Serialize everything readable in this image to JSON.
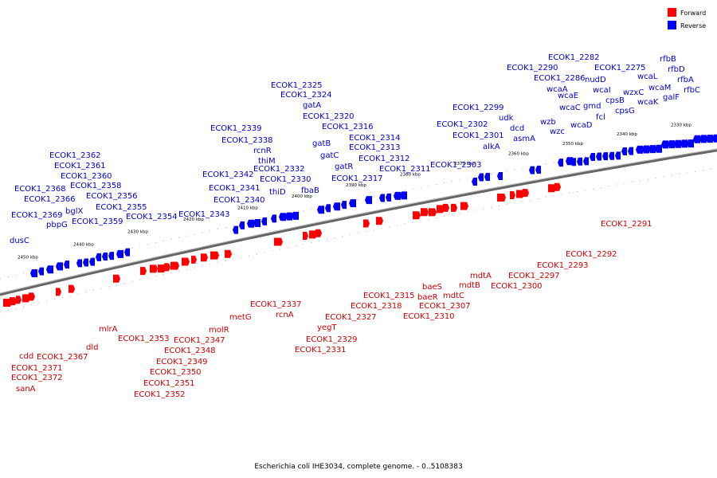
{
  "caption": "Escherichia coli IHE3034, complete genome. - 0..5108383",
  "legend": [
    {
      "label": "Forward",
      "color": "#ff0000"
    },
    {
      "label": "Reverse",
      "color": "#0000ff"
    }
  ],
  "colors": {
    "forward": "#ff0000",
    "reverse": "#0000ff",
    "label_forward": "#cc0000",
    "label_reverse": "#0000cc",
    "backbone": "#888888"
  },
  "ticks": [
    "2450 kbp",
    "2440 kbp",
    "2430 kbp",
    "2420 kbp",
    "2410 kbp",
    "2400 kbp",
    "2390 kbp",
    "2380 kbp",
    "2370 kbp",
    "2360 kbp",
    "2350 kbp",
    "2340 kbp",
    "2330 kbp"
  ],
  "reverse_labels": [
    "dusC",
    "ECOK1_2369",
    "pbpG",
    "ECOK1_2368",
    "ECOK1_2366",
    "bglX",
    "ECOK1_2362",
    "ECOK1_2361",
    "ECOK1_2360",
    "ECOK1_2358",
    "ECOK1_2356",
    "ECOK1_2355",
    "ECOK1_2359",
    "ECOK1_2354",
    "ECOK1_2343",
    "ECOK1_2342",
    "ECOK1_2341",
    "ECOK1_2340",
    "ECOK1_2339",
    "ECOK1_2338",
    "rcnR",
    "thiM",
    "ECOK1_2332",
    "ECOK1_2330",
    "thiD",
    "ECOK1_2325",
    "ECOK1_2324",
    "gatA",
    "ECOK1_2320",
    "ECOK1_2316",
    "gatB",
    "gatC",
    "gatR",
    "fbaB",
    "ECOK1_2317",
    "ECOK1_2314",
    "ECOK1_2313",
    "ECOK1_2312",
    "ECOK1_2311",
    "ECOK1_2299",
    "ECOK1_2302",
    "ECOK1_2301",
    "alkA",
    "ECOK1_2303",
    "udk",
    "dcd",
    "asmA",
    "ECOK1_2290",
    "ECOK1_2282",
    "ECOK1_2286",
    "nudD",
    "wcaA",
    "wcaE",
    "wcaI",
    "wcaC",
    "gmd",
    "cpsB",
    "fcl",
    "cpsG",
    "wzb",
    "wzc",
    "wcaD",
    "ECOK1_2275",
    "wzxC",
    "wcaL",
    "wcaM",
    "wcaK",
    "rfbB",
    "rfbD",
    "rfbA",
    "galF",
    "rfbC"
  ],
  "forward_labels": [
    "cdd",
    "ECOK1_2371",
    "ECOK1_2372",
    "sanA",
    "ECOK1_2367",
    "dld",
    "mlrA",
    "ECOK1_2353",
    "ECOK1_2350",
    "ECOK1_2351",
    "ECOK1_2352",
    "ECOK1_2349",
    "ECOK1_2348",
    "ECOK1_2347",
    "molR",
    "metG",
    "ECOK1_2337",
    "rcnA",
    "ECOK1_2329",
    "ECOK1_2331",
    "yegT",
    "ECOK1_2327",
    "ECOK1_2315",
    "ECOK1_2318",
    "baeS",
    "baeR",
    "ECOK1_2310",
    "ECOK1_2307",
    "mdtC",
    "mdtB",
    "mdtA",
    "ECOK1_2300",
    "ECOK1_2297",
    "ECOK1_2293",
    "ECOK1_2292",
    "ECOK1_2291"
  ]
}
